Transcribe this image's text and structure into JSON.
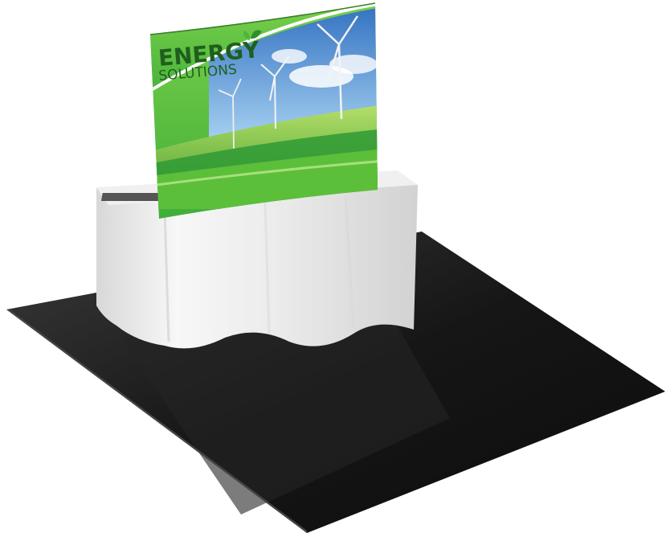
{
  "banner": {
    "brand_line1": "ENERGY",
    "brand_line2": "SOLUTIONS"
  },
  "colors": {
    "background": "#ffffff",
    "floor": "#1a1a1a",
    "tablecloth": "#f4f4f4",
    "banner_green": "#5cbf3a",
    "banner_dark_green": "#2f8f2a",
    "brand_text": "#1f5f1d",
    "sky": "#5a9fd8",
    "grass": "#7cc242"
  },
  "icons": [
    "leaf-icon",
    "wind-turbine"
  ]
}
